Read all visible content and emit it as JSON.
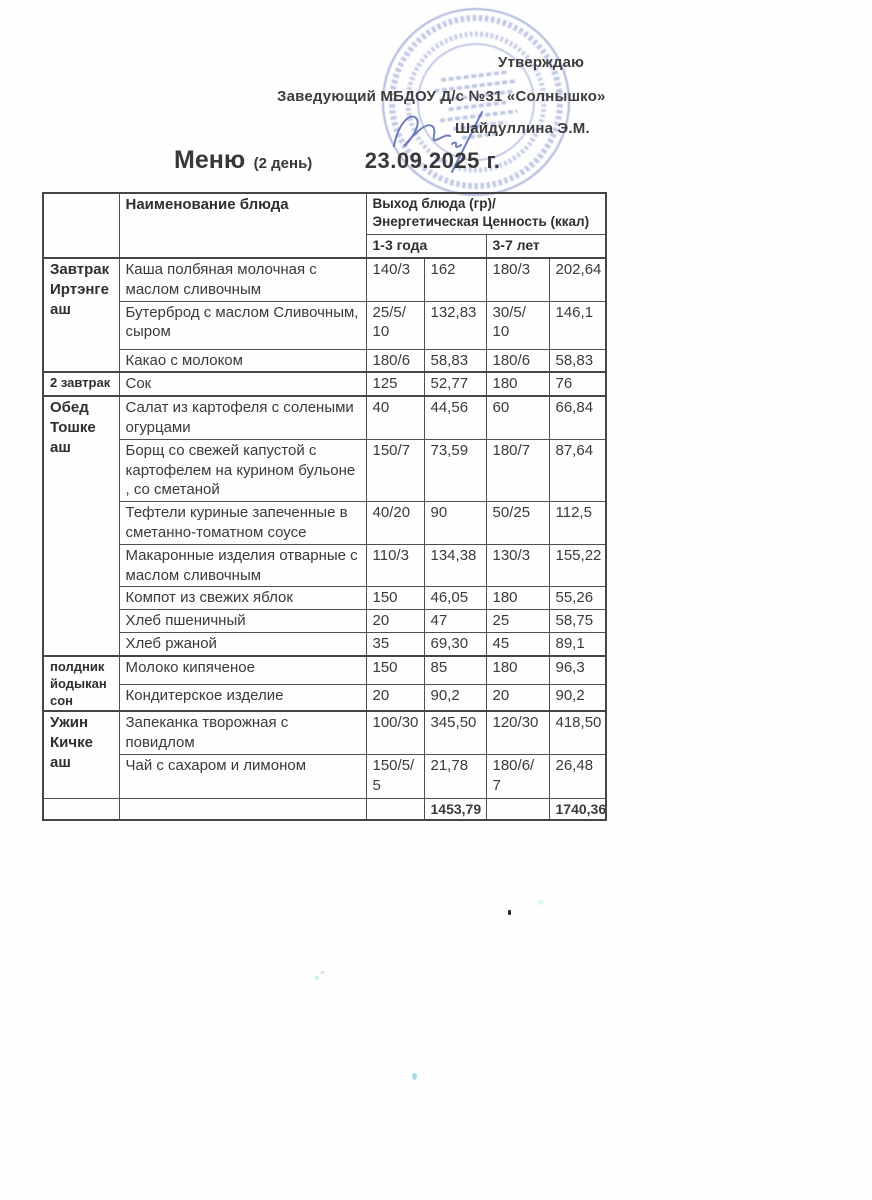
{
  "header": {
    "approve": "Утверждаю",
    "director_line": "Заведующий МБДОУ Д/с №31 «Солнышко»",
    "signature_name": "Шайдуллина Э.М.",
    "stamp_color": "#6577bd",
    "signature_color": "#5668b0"
  },
  "title": {
    "word": "Меню",
    "day": "(2 день)",
    "date": "23.09.2025 г."
  },
  "table": {
    "headers": {
      "dish": "Наименование блюда",
      "output": "Выход блюда (гр)/Энергетическая Ценность (ккал)",
      "age_groups": [
        "1-3 года",
        "3-7 лет"
      ]
    },
    "sections": [
      {
        "meal": "Завтрак Иртэнге аш",
        "small": false,
        "rows": [
          {
            "dish": "Каша полбяная молочная с маслом сливочным",
            "p1": "140/3",
            "k1": "162",
            "p2": "180/3",
            "k2": "202,64"
          },
          {
            "dish": "Бутерброд с маслом Сливочным, сыром",
            "p1": "25/5/\n10",
            "k1": "132,83",
            "p2": "30/5/\n10",
            "k2": "146,1"
          },
          {
            "dish": "Какао с молоком",
            "p1": "180/6",
            "k1": "58,83",
            "p2": "180/6",
            "k2": "58,83"
          }
        ]
      },
      {
        "meal": "2 завтрак",
        "small": true,
        "rows": [
          {
            "dish": "Сок",
            "p1": "125",
            "k1": "52,77",
            "p2": "180",
            "k2": "76"
          }
        ]
      },
      {
        "meal": "Обед Тошке аш",
        "small": false,
        "rows": [
          {
            "dish": "Салат из картофеля с солеными огурцами",
            "p1": "40",
            "k1": "44,56",
            "p2": "60",
            "k2": "66,84"
          },
          {
            "dish": "Борщ  со свежей капустой с картофелем на курином бульоне , со сметаной",
            "p1": "150/7",
            "k1": "73,59",
            "p2": "180/7",
            "k2": "87,64"
          },
          {
            "dish": "Тефтели куриные запеченные в сметанно-томатном соусе",
            "p1": "40/20",
            "k1": "90",
            "p2": "50/25",
            "k2": "112,5"
          },
          {
            "dish": "Макаронные изделия отварные с маслом сливочным",
            "p1": "110/3",
            "k1": "134,38",
            "p2": "130/3",
            "k2": "155,22"
          },
          {
            "dish": "Компот из свежих яблок",
            "p1": "150",
            "k1": "46,05",
            "p2": "180",
            "k2": "55,26"
          },
          {
            "dish": "Хлеб пшеничный",
            "p1": "20",
            "k1": "47",
            "p2": "25",
            "k2": "58,75"
          },
          {
            "dish": "Хлеб ржаной",
            "p1": "35",
            "k1": "69,30",
            "p2": "45",
            "k2": "89,1"
          }
        ]
      },
      {
        "meal": "полдник йодыкан сон",
        "small": true,
        "rows": [
          {
            "dish": "Молоко кипяченое",
            "p1": "150",
            "k1": "85",
            "p2": "180",
            "k2": "96,3"
          },
          {
            "dish": "Кондитерское изделие",
            "p1": "20",
            "k1": "90,2",
            "p2": "20",
            "k2": "90,2"
          }
        ]
      },
      {
        "meal": "Ужин Кичке аш",
        "small": false,
        "rows": [
          {
            "dish": "Запеканка творожная с повидлом",
            "p1": "100/30",
            "k1": "345,50",
            "p2": "120/30",
            "k2": "418,50"
          },
          {
            "dish": "Чай с сахаром  и лимоном",
            "p1": "150/5/\n5",
            "k1": "21,78",
            "p2": "180/6/\n7",
            "k2": "26,48"
          }
        ]
      }
    ],
    "totals": {
      "k1": "1453,79",
      "k2": "1740,36"
    }
  }
}
